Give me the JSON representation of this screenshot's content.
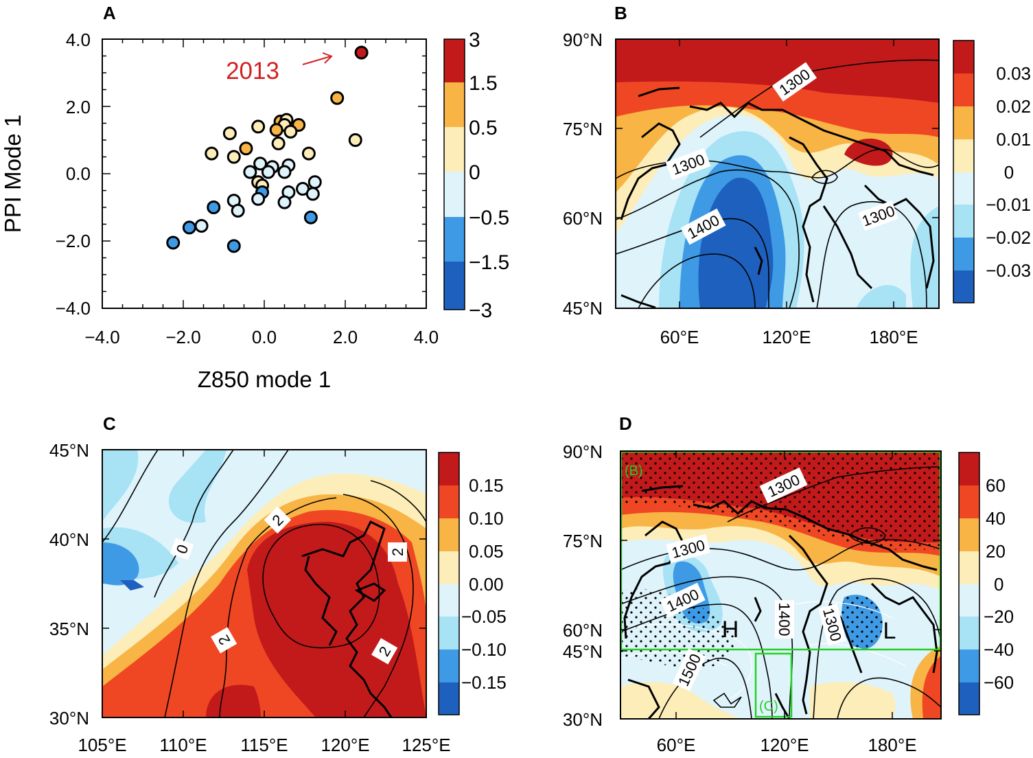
{
  "colors": {
    "red_dark": "#c21a1b",
    "red": "#ef4723",
    "orange": "#f8b444",
    "cream": "#fdedb8",
    "pale_cyan": "#dff3fb",
    "light_blue": "#a7e2f5",
    "mid_blue": "#3e9ae5",
    "dark_blue": "#1e60bd",
    "green_box": "#23d023",
    "annotation_red": "#d42022"
  },
  "chart_data": [
    {
      "panel": "A",
      "type": "scatter",
      "xlabel": "Z850 mode 1",
      "ylabel": "PPI Mode 1",
      "xlim": [
        -4.0,
        4.0
      ],
      "ylim": [
        -4.0,
        4.0
      ],
      "xticks": [
        "−4.0",
        "−2.0",
        "0.0",
        "2.0",
        "4.0"
      ],
      "yticks": [
        "−4.0",
        "−2.0",
        "0.0",
        "2.0",
        "4.0"
      ],
      "annotation": "2013",
      "colorbar_labels": [
        "3",
        "1.5",
        "0.5",
        "0",
        "−0.5",
        "−1.5",
        "−3"
      ],
      "points": [
        {
          "x": 2.4,
          "y": 3.6,
          "v": 3.0
        },
        {
          "x": 1.8,
          "y": 2.25,
          "v": 1.0
        },
        {
          "x": 2.25,
          "y": 1.0,
          "v": 0.3
        },
        {
          "x": 0.4,
          "y": 1.55,
          "v": 1.0
        },
        {
          "x": 0.55,
          "y": 1.6,
          "v": 0.3
        },
        {
          "x": 0.5,
          "y": 1.45,
          "v": 0.3
        },
        {
          "x": 0.3,
          "y": 1.3,
          "v": 1.0
        },
        {
          "x": 0.85,
          "y": 1.45,
          "v": 1.0
        },
        {
          "x": 0.65,
          "y": 1.25,
          "v": 0.3
        },
        {
          "x": -0.15,
          "y": 1.4,
          "v": 0.3
        },
        {
          "x": 1.1,
          "y": 0.6,
          "v": 0.3
        },
        {
          "x": -0.85,
          "y": 1.2,
          "v": 0.3
        },
        {
          "x": -0.45,
          "y": 0.75,
          "v": 1.0
        },
        {
          "x": 0.35,
          "y": 0.9,
          "v": 0.3
        },
        {
          "x": -0.75,
          "y": 0.5,
          "v": 0.3
        },
        {
          "x": -1.3,
          "y": 0.6,
          "v": 0.3
        },
        {
          "x": -0.1,
          "y": 0.3,
          "v": -0.2
        },
        {
          "x": 0.2,
          "y": 0.2,
          "v": -0.2
        },
        {
          "x": -0.35,
          "y": 0.05,
          "v": -0.2
        },
        {
          "x": 0.1,
          "y": 0.05,
          "v": -0.2
        },
        {
          "x": 0.6,
          "y": 0.25,
          "v": -0.2
        },
        {
          "x": 0.5,
          "y": 0.05,
          "v": -0.2
        },
        {
          "x": -0.15,
          "y": -0.25,
          "v": 0.3
        },
        {
          "x": -0.05,
          "y": -0.35,
          "v": 0.3
        },
        {
          "x": 1.25,
          "y": -0.25,
          "v": -0.2
        },
        {
          "x": 0.95,
          "y": -0.45,
          "v": -0.2
        },
        {
          "x": -0.05,
          "y": -0.55,
          "v": -1.0
        },
        {
          "x": 0.6,
          "y": -0.55,
          "v": -0.2
        },
        {
          "x": 1.2,
          "y": -0.6,
          "v": -0.2
        },
        {
          "x": -0.15,
          "y": -0.75,
          "v": -0.2
        },
        {
          "x": -0.75,
          "y": -0.8,
          "v": -0.2
        },
        {
          "x": 0.5,
          "y": -0.85,
          "v": -0.2
        },
        {
          "x": -0.65,
          "y": -1.1,
          "v": -0.2
        },
        {
          "x": -1.25,
          "y": -1.0,
          "v": -1.0
        },
        {
          "x": 1.15,
          "y": -1.3,
          "v": -1.0
        },
        {
          "x": -1.55,
          "y": -1.55,
          "v": -0.2
        },
        {
          "x": -1.85,
          "y": -1.6,
          "v": -1.0
        },
        {
          "x": -2.25,
          "y": -2.05,
          "v": -1.0
        },
        {
          "x": -0.75,
          "y": -2.15,
          "v": -1.0
        }
      ]
    },
    {
      "panel": "B",
      "type": "heatmap",
      "yticks": [
        "90°N",
        "75°N",
        "60°N",
        "45°N"
      ],
      "xticks": [
        "60°E",
        "120°E",
        "180°E"
      ],
      "colorbar_labels": [
        "0.03",
        "0.02",
        "0.01",
        "0",
        "−0.01",
        "−0.02",
        "−0.03"
      ],
      "contour_labels": [
        "1300",
        "1300",
        "1400",
        "1300"
      ]
    },
    {
      "panel": "C",
      "type": "heatmap",
      "yticks": [
        "45°N",
        "40°N",
        "35°N",
        "30°N"
      ],
      "xticks": [
        "105°E",
        "110°E",
        "115°E",
        "120°E",
        "125°E"
      ],
      "colorbar_labels": [
        "0.15",
        "0.10",
        "0.05",
        "0.00",
        "−0.05",
        "−0.10",
        "−0.15"
      ],
      "contour_labels": [
        "0",
        "2",
        "2",
        "2",
        "2"
      ]
    },
    {
      "panel": "D",
      "type": "heatmap",
      "yticks": [
        "90°N",
        "75°N",
        "60°N",
        "45°N",
        "30°N"
      ],
      "xticks": [
        "60°E",
        "120°E",
        "180°E"
      ],
      "colorbar_labels": [
        "60",
        "40",
        "20",
        "0",
        "−20",
        "−40",
        "−60"
      ],
      "contour_labels": [
        "1300",
        "1300",
        "1400",
        "1400",
        "1500",
        "1300"
      ],
      "box_labels": [
        "(B)",
        "(C)"
      ],
      "markers": [
        "H",
        "L"
      ]
    }
  ]
}
